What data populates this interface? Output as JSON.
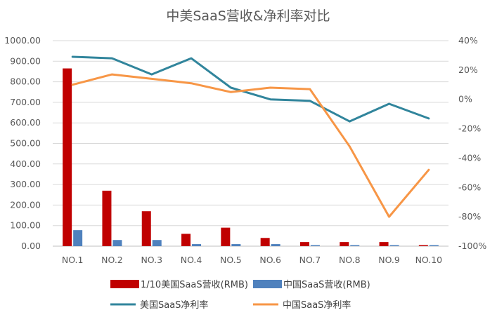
{
  "chart_data": {
    "type": "bar+line",
    "title": "中美SaaS营收&净利率对比",
    "categories": [
      "NO.1",
      "NO.2",
      "NO.3",
      "NO.4",
      "NO.5",
      "NO.6",
      "NO.7",
      "NO.8",
      "NO.9",
      "NO.10"
    ],
    "left_axis": {
      "ylim": [
        0,
        1000
      ],
      "ticks": [
        "0.00",
        "100.00",
        "200.00",
        "300.00",
        "400.00",
        "500.00",
        "600.00",
        "700.00",
        "800.00",
        "900.00",
        "1000.00"
      ]
    },
    "right_axis": {
      "ylim": [
        -100,
        40
      ],
      "ticks": [
        "-100%",
        "-80%",
        "-60%",
        "-40%",
        "-20%",
        "0%",
        "20%",
        "40%"
      ]
    },
    "bar_series": [
      {
        "name": "1/10美国SaaS营收(RMB)",
        "color": "#C00000",
        "values": [
          865,
          270,
          170,
          60,
          90,
          40,
          20,
          20,
          20,
          5
        ]
      },
      {
        "name": "中国SaaS营收(RMB)",
        "color": "#4F81BD",
        "values": [
          78,
          30,
          30,
          10,
          10,
          10,
          5,
          5,
          5,
          5
        ]
      }
    ],
    "line_series": [
      {
        "name": "美国SaaS净利率",
        "color": "#31859C",
        "values": [
          29,
          28,
          17,
          28,
          8,
          0,
          -1,
          -15,
          -3,
          -13
        ]
      },
      {
        "name": "中国SaaS净利率",
        "color": "#F79646",
        "values": [
          10,
          17,
          14,
          11,
          5,
          8,
          7,
          -32,
          -80,
          -48
        ]
      }
    ]
  }
}
